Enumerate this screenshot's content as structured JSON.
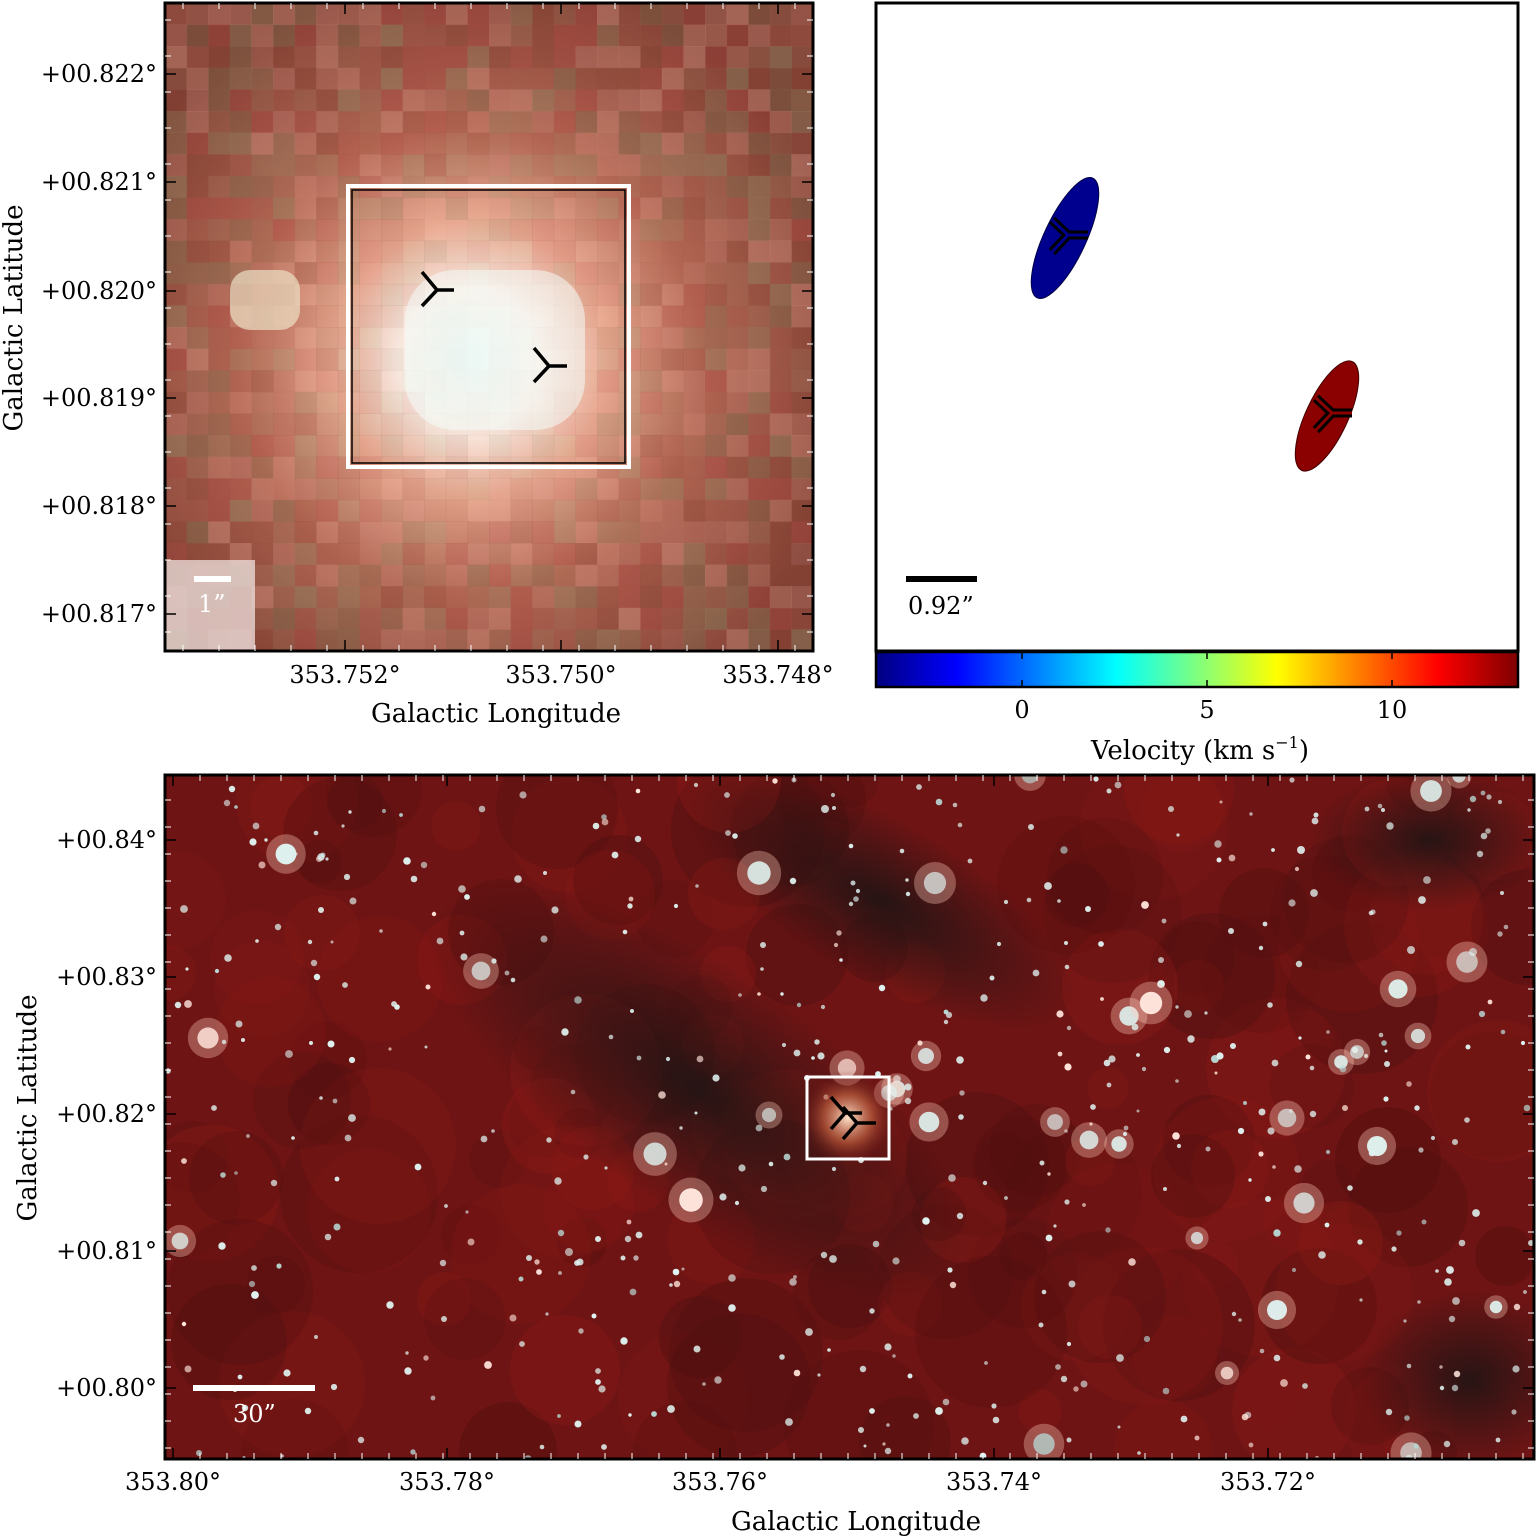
{
  "panels": {
    "zoom": {
      "xlabel": "Galactic Longitude",
      "ylabel": "Galactic Latitude",
      "xticks": [
        "353.752°",
        "353.750°",
        "353.748°"
      ],
      "yticks": [
        "+00.822°",
        "+00.821°",
        "+00.820°",
        "+00.819°",
        "+00.818°",
        "+00.817°"
      ],
      "scalebar_label": "1”",
      "colors": {
        "frame": "#000000",
        "box": "#ffffff",
        "marker": "#000000"
      }
    },
    "velocity": {
      "scalebar_label": "0.92”",
      "colorbar_label": "Velocity (km s",
      "colorbar_label_exp": "−1",
      "colorbar_label_close": ")",
      "colorbar_ticks": [
        "0",
        "5",
        "10"
      ],
      "colormap": [
        "#00007f",
        "#0000ff",
        "#007fff",
        "#00ffff",
        "#7fff7f",
        "#ffff00",
        "#ff7f00",
        "#ff0000",
        "#7f0000"
      ],
      "sources": [
        {
          "color": "#00008f"
        },
        {
          "color": "#8b0000"
        }
      ]
    },
    "wide": {
      "xlabel": "Galactic Longitude",
      "ylabel": "Galactic Latitude",
      "xticks": [
        "353.80°",
        "353.78°",
        "353.76°",
        "353.74°",
        "353.72°"
      ],
      "yticks": [
        "+00.84°",
        "+00.83°",
        "+00.82°",
        "+00.81°",
        "+00.80°"
      ],
      "scalebar_label": "30”",
      "colors": {
        "background": "#6e1414",
        "box": "#ffffff",
        "marker": "#000000"
      }
    }
  }
}
